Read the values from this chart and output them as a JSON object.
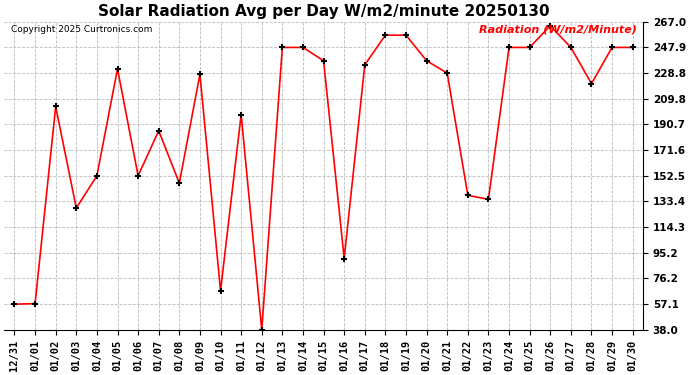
{
  "title": "Solar Radiation Avg per Day W/m2/minute 20250130",
  "copyright": "Copyright 2025 Curtronics.com",
  "legend_label": "Radiation (W/m2/Minute)",
  "dates": [
    "12/31",
    "01/01",
    "01/02",
    "01/03",
    "01/04",
    "01/05",
    "01/06",
    "01/07",
    "01/08",
    "01/09",
    "01/10",
    "01/11",
    "01/12",
    "01/13",
    "01/14",
    "01/15",
    "01/16",
    "01/17",
    "01/18",
    "01/19",
    "01/20",
    "01/21",
    "01/22",
    "01/23",
    "01/24",
    "01/25",
    "01/26",
    "01/27",
    "01/28",
    "01/29",
    "01/30"
  ],
  "values": [
    57.1,
    57.5,
    204.0,
    128.5,
    152.5,
    232.0,
    152.5,
    186.0,
    147.0,
    228.0,
    67.0,
    198.0,
    38.0,
    247.9,
    247.9,
    238.0,
    91.0,
    235.0,
    257.0,
    257.0,
    238.0,
    228.8,
    138.0,
    135.0,
    247.9,
    247.9,
    264.0,
    247.9,
    221.0,
    247.9,
    247.9
  ],
  "ylim": [
    38.0,
    267.0
  ],
  "yticks": [
    38.0,
    57.1,
    76.2,
    95.2,
    114.3,
    133.4,
    152.5,
    171.6,
    190.7,
    209.8,
    228.8,
    247.9,
    267.0
  ],
  "line_color": "red",
  "marker": "+",
  "markersize": 5,
  "markeredgewidth": 1.5,
  "background_color": "#ffffff",
  "grid_color": "#aaaaaa",
  "title_fontsize": 11,
  "tick_fontsize": 7.5,
  "copyright_fontsize": 6.5,
  "legend_fontsize": 8
}
